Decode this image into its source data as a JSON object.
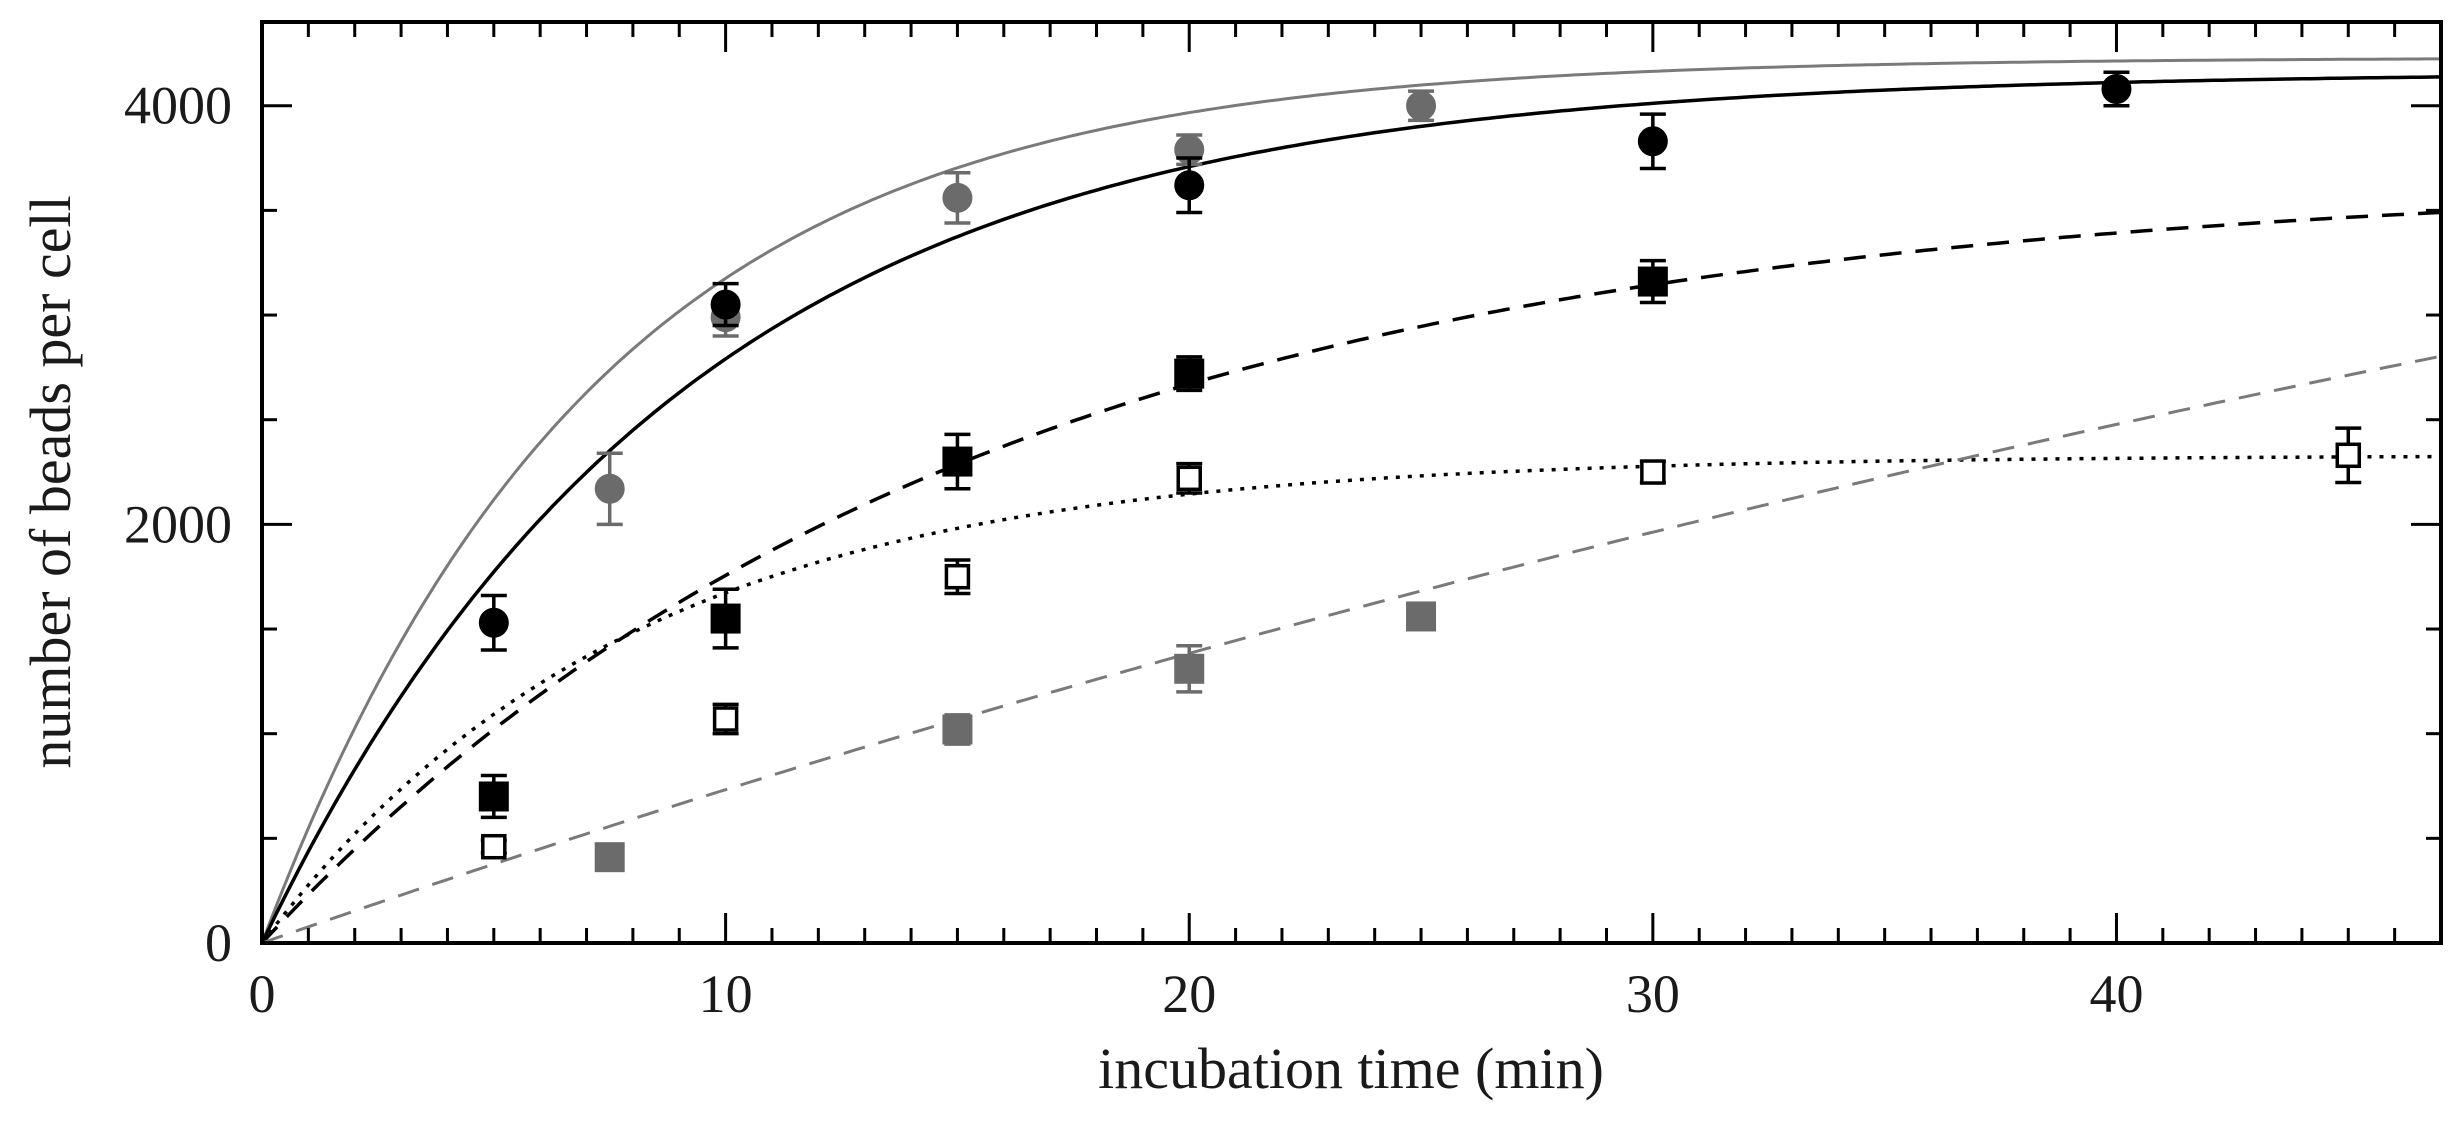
{
  "chart_data": {
    "type": "scatter",
    "title": "",
    "xlabel": "incubation time (min)",
    "ylabel": "number of beads per cell",
    "xlim": [
      0,
      47
    ],
    "ylim": [
      0,
      4400
    ],
    "x_ticks": [
      0,
      10,
      20,
      30,
      40
    ],
    "x_tick_labels": [
      "0",
      "10",
      "20",
      "30",
      "40"
    ],
    "y_ticks": [
      0,
      2000,
      4000
    ],
    "y_tick_labels": [
      "0",
      "2000",
      "4000"
    ],
    "grid": false,
    "series": [
      {
        "name": "grey circles",
        "marker": "circle",
        "fill": "#6b6b6b",
        "stroke": "#6b6b6b",
        "x": [
          7.5,
          10,
          15,
          20,
          25
        ],
        "y": [
          2170,
          2990,
          3560,
          3790,
          4000
        ],
        "err": [
          170,
          90,
          120,
          70,
          70
        ],
        "fit": {
          "model": "saturating_exponential",
          "A": 4230,
          "tau": 7.2,
          "color": "#7a7a7a",
          "dash": "",
          "width": 3
        }
      },
      {
        "name": "black circles",
        "marker": "circle",
        "fill": "#000000",
        "stroke": "#000000",
        "x": [
          5,
          10,
          20,
          30,
          40
        ],
        "y": [
          1530,
          3050,
          3620,
          3830,
          4080
        ],
        "err": [
          130,
          100,
          130,
          130,
          80
        ],
        "fit": {
          "model": "saturating_exponential",
          "A": 4160,
          "tau": 9.0,
          "color": "#000000",
          "dash": "",
          "width": 3.5
        }
      },
      {
        "name": "black squares",
        "marker": "square",
        "fill": "#000000",
        "stroke": "#000000",
        "x": [
          5,
          10,
          15,
          20,
          30
        ],
        "y": [
          700,
          1550,
          2300,
          2720,
          3160
        ],
        "err": [
          100,
          140,
          130,
          80,
          100
        ],
        "fit": {
          "model": "saturating_exponential",
          "A": 3660,
          "tau": 15.3,
          "color": "#000000",
          "dash": "22,14",
          "width": 3.5
        }
      },
      {
        "name": "open squares",
        "marker": "square-open",
        "fill": "#ffffff",
        "stroke": "#000000",
        "x": [
          5,
          10,
          15,
          20,
          30,
          45
        ],
        "y": [
          460,
          1070,
          1750,
          2220,
          2250,
          2330
        ],
        "err": [
          30,
          70,
          80,
          70,
          50,
          130
        ],
        "fit": {
          "model": "saturating_exponential",
          "A": 2330,
          "tau": 7.9,
          "color": "#000000",
          "dash": "4,8",
          "width": 3.5
        }
      },
      {
        "name": "grey squares",
        "marker": "square",
        "fill": "#6b6b6b",
        "stroke": "#6b6b6b",
        "x": [
          7.5,
          15,
          20,
          25
        ],
        "y": [
          410,
          1020,
          1310,
          1560
        ],
        "err": [
          30,
          70,
          110,
          40
        ],
        "fit": {
          "model": "saturating_exponential",
          "A": 6600,
          "tau": 85,
          "color": "#7a7a7a",
          "dash": "22,14",
          "width": 3
        }
      }
    ]
  }
}
